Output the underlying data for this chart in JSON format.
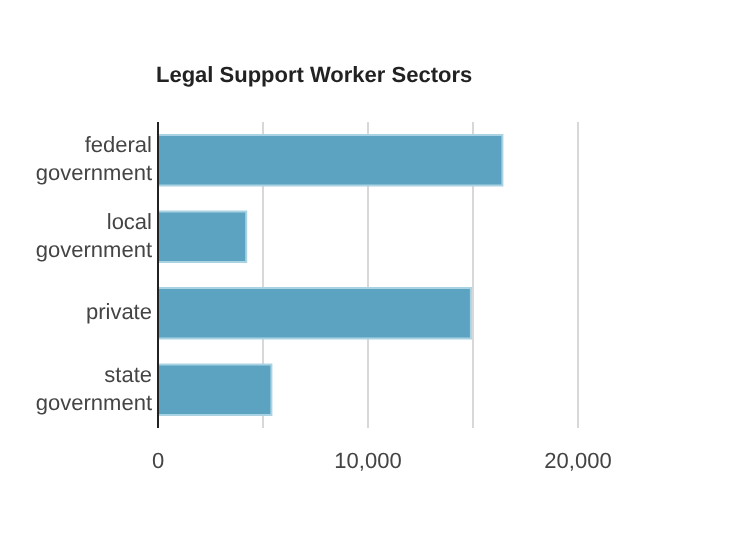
{
  "chart_data": {
    "type": "bar",
    "orientation": "horizontal",
    "title": "Legal Support Worker Sectors",
    "categories": [
      "federal government",
      "local government",
      "private",
      "state government"
    ],
    "values": [
      16400,
      4200,
      14900,
      5400
    ],
    "color": "#5ba3c0",
    "xlim": [
      0,
      20000
    ],
    "xticks": [
      0,
      {
        "value": 5000,
        "label": null
      },
      {
        "value": 10000,
        "label": "10,000"
      },
      {
        "value": 15000,
        "label": null
      },
      {
        "value": 20000,
        "label": "20,000"
      }
    ],
    "grid": "x"
  }
}
